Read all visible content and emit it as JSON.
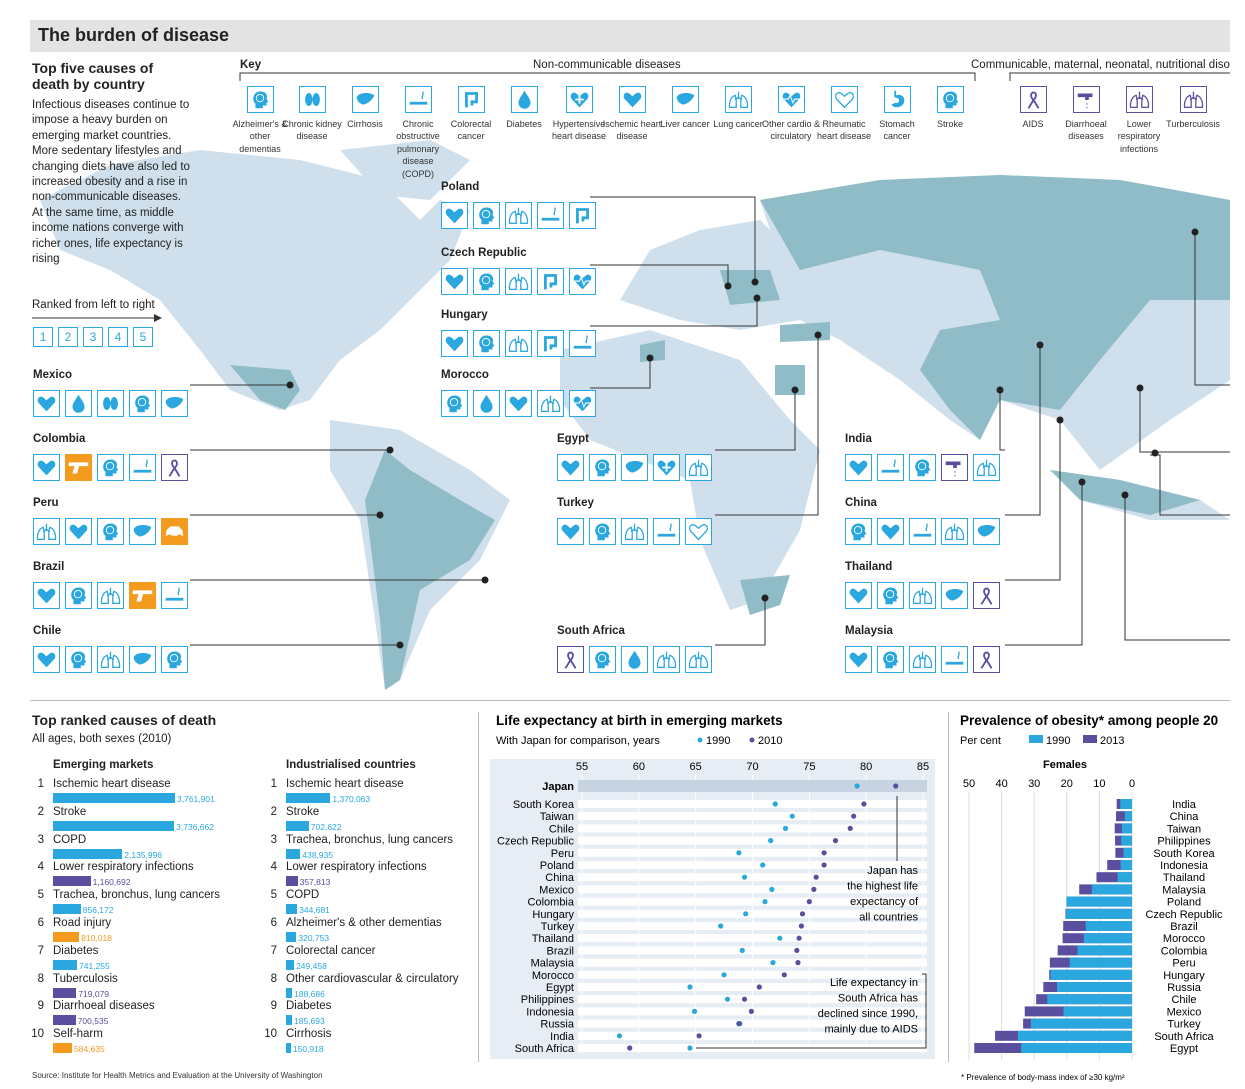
{
  "title": "The burden of disease",
  "map_section": {
    "heading": "Top five causes of death by country",
    "intro": "Infectious diseases continue to impose a heavy burden on emerging market countries. More sedentary lifestyles and changing diets have also led to increased obesity and a rise in non-communicable diseases. At the same time, as middle income nations converge with richer ones, life expectancy is rising",
    "ranked_label": "Ranked from left to right",
    "ranks": [
      "1",
      "2",
      "3",
      "4",
      "5"
    ],
    "key_label": "Key",
    "noncommunicable_label": "Non-communicable diseases",
    "communicable_label": "Communicable, maternal, neonatal, nutritional diso",
    "key_items": [
      {
        "icon": "head-icon",
        "label": "Alzheimer's & other dementias"
      },
      {
        "icon": "kidney-icon",
        "label": "Chronic kidney disease"
      },
      {
        "icon": "liver-icon",
        "label": "Cirrhosis"
      },
      {
        "icon": "cigarette-icon",
        "label": "Chronic obstructive pulmonary disease (COPD)"
      },
      {
        "icon": "colon-icon",
        "label": "Colorectal cancer"
      },
      {
        "icon": "drop-icon",
        "label": "Diabetes"
      },
      {
        "icon": "heart-plus-icon",
        "label": "Hypertensive heart disease"
      },
      {
        "icon": "heart-icon",
        "label": "Ischemic heart disease"
      },
      {
        "icon": "liver-icon",
        "label": "Liver cancer"
      },
      {
        "icon": "lungs-icon",
        "label": "Lung cancer"
      },
      {
        "icon": "heart-pulse-icon",
        "label": "Other cardio & circulatory"
      },
      {
        "icon": "heart-outline-icon",
        "label": "Rheumatic heart disease"
      },
      {
        "icon": "stomach-icon",
        "label": "Stomach cancer"
      },
      {
        "icon": "head-icon",
        "label": "Stroke"
      },
      {
        "icon": "ribbon-icon",
        "label": "AIDS"
      },
      {
        "icon": "tap-icon",
        "label": "Diarrhoeal diseases"
      },
      {
        "icon": "lungs-icon",
        "label": "Lower respiratory infections"
      },
      {
        "icon": "lungs-icon",
        "label": "Turberculosis"
      }
    ],
    "countries": [
      {
        "name": "Mexico",
        "icons": [
          "heart-icon",
          "drop-icon",
          "kidney-icon",
          "head-icon",
          "liver-icon"
        ]
      },
      {
        "name": "Colombia",
        "icons": [
          "heart-icon",
          "gun-icon",
          "head-icon",
          "cigarette-icon",
          "ribbon-icon"
        ]
      },
      {
        "name": "Peru",
        "icons": [
          "lungs-icon",
          "heart-icon",
          "head-icon",
          "liver-icon",
          "car-icon"
        ]
      },
      {
        "name": "Brazil",
        "icons": [
          "heart-icon",
          "head-icon",
          "lungs-icon",
          "gun-icon",
          "cigarette-icon"
        ]
      },
      {
        "name": "Chile",
        "icons": [
          "heart-icon",
          "head-icon",
          "lungs-icon",
          "liver-icon",
          "head-icon"
        ]
      },
      {
        "name": "Poland",
        "icons": [
          "heart-icon",
          "head-icon",
          "lungs-icon",
          "cigarette-icon",
          "colon-icon"
        ]
      },
      {
        "name": "Czech Republic",
        "icons": [
          "heart-icon",
          "head-icon",
          "lungs-icon",
          "colon-icon",
          "heart-pulse-icon"
        ]
      },
      {
        "name": "Hungary",
        "icons": [
          "heart-icon",
          "head-icon",
          "lungs-icon",
          "colon-icon",
          "cigarette-icon"
        ]
      },
      {
        "name": "Morocco",
        "icons": [
          "head-icon",
          "drop-icon",
          "heart-icon",
          "lungs-icon",
          "heart-pulse-icon"
        ]
      },
      {
        "name": "Egypt",
        "icons": [
          "heart-icon",
          "head-icon",
          "liver-icon",
          "heart-plus-icon",
          "lungs-icon"
        ]
      },
      {
        "name": "Turkey",
        "icons": [
          "heart-icon",
          "head-icon",
          "lungs-icon",
          "cigarette-icon",
          "heart-outline-icon"
        ]
      },
      {
        "name": "South Africa",
        "icons": [
          "ribbon-icon",
          "head-icon",
          "drop-icon",
          "lungs-icon",
          "lungs-icon"
        ]
      },
      {
        "name": "India",
        "icons": [
          "heart-icon",
          "cigarette-icon",
          "head-icon",
          "tap-icon",
          "lungs-icon"
        ]
      },
      {
        "name": "China",
        "icons": [
          "head-icon",
          "heart-icon",
          "cigarette-icon",
          "lungs-icon",
          "liver-icon"
        ]
      },
      {
        "name": "Thailand",
        "icons": [
          "heart-icon",
          "head-icon",
          "lungs-icon",
          "liver-icon",
          "ribbon-icon"
        ]
      },
      {
        "name": "Malaysia",
        "icons": [
          "heart-icon",
          "head-icon",
          "lungs-icon",
          "cigarette-icon",
          "ribbon-icon"
        ]
      }
    ]
  },
  "ranked_causes": {
    "title": "Top ranked causes of death",
    "subtitle": "All ages, both sexes (2010)",
    "emerging_label": "Emerging markets",
    "industrial_label": "Industrialised countries",
    "emerging": [
      {
        "rank": "1",
        "cause": "Ischemic heart disease",
        "value": 3761901,
        "label": "3,761,901",
        "color": "#2aa7de"
      },
      {
        "rank": "2",
        "cause": "Stroke",
        "value": 3736662,
        "label": "3,736,662",
        "color": "#2aa7de"
      },
      {
        "rank": "3",
        "cause": "COPD",
        "value": 2135996,
        "label": "2,135,996",
        "color": "#2aa7de"
      },
      {
        "rank": "4",
        "cause": "Lower respiratory infections",
        "value": 1160692,
        "label": "1,160,692",
        "color": "#5a4f9e"
      },
      {
        "rank": "5",
        "cause": "Trachea, bronchus, lung cancers",
        "value": 856172,
        "label": "856,172",
        "color": "#2aa7de"
      },
      {
        "rank": "6",
        "cause": "Road injury",
        "value": 810018,
        "label": "810,018",
        "color": "#f39a1f"
      },
      {
        "rank": "7",
        "cause": "Diabetes",
        "value": 741255,
        "label": "741,255",
        "color": "#2aa7de"
      },
      {
        "rank": "8",
        "cause": "Tuberculosis",
        "value": 719079,
        "label": "719,079",
        "color": "#5a4f9e"
      },
      {
        "rank": "9",
        "cause": "Diarrhoeal diseases",
        "value": 700535,
        "label": "700,535",
        "color": "#5a4f9e"
      },
      {
        "rank": "10",
        "cause": "Self-harm",
        "value": 584635,
        "label": "584,635",
        "color": "#f39a1f"
      }
    ],
    "industrialised": [
      {
        "rank": "1",
        "cause": "Ischemic heart disease",
        "value": 1370063,
        "label": "1,370,063",
        "color": "#2aa7de"
      },
      {
        "rank": "2",
        "cause": "Stroke",
        "value": 702622,
        "label": "702,622",
        "color": "#2aa7de"
      },
      {
        "rank": "3",
        "cause": "Trachea, bronchus, lung cancers",
        "value": 438935,
        "label": "438,935",
        "color": "#2aa7de"
      },
      {
        "rank": "4",
        "cause": "Lower respiratory infections",
        "value": 357813,
        "label": "357,813",
        "color": "#5a4f9e"
      },
      {
        "rank": "5",
        "cause": "COPD",
        "value": 344681,
        "label": "344,681",
        "color": "#2aa7de"
      },
      {
        "rank": "6",
        "cause": "Alzheimer's & other dementias",
        "value": 320753,
        "label": "320,753",
        "color": "#2aa7de"
      },
      {
        "rank": "7",
        "cause": "Colorectal cancer",
        "value": 249458,
        "label": "249,458",
        "color": "#2aa7de"
      },
      {
        "rank": "8",
        "cause": "Other cardiovascular & circulatory",
        "value": 188686,
        "label": "188,686",
        "color": "#2aa7de"
      },
      {
        "rank": "9",
        "cause": "Diabetes",
        "value": 185693,
        "label": "185,693",
        "color": "#2aa7de"
      },
      {
        "rank": "10",
        "cause": "Cirrhosis",
        "value": 150918,
        "label": "150,918",
        "color": "#2aa7de"
      }
    ]
  },
  "chart_data": [
    {
      "type": "scatter",
      "title": "Life expectancy at birth in emerging markets",
      "subtitle": "With Japan for comparison, years",
      "xlim": [
        55,
        85
      ],
      "xticks": [
        55,
        60,
        65,
        70,
        75,
        80,
        85
      ],
      "legend": [
        "1990",
        "2010"
      ],
      "colors": {
        "1990": "#2aa7de",
        "2010": "#5a4f9e"
      },
      "categories": [
        "Japan",
        "South Korea",
        "Taiwan",
        "Chile",
        "Czech Republic",
        "Peru",
        "Poland",
        "China",
        "Mexico",
        "Colombia",
        "Hungary",
        "Turkey",
        "Thailand",
        "Brazil",
        "Malaysia",
        "Morocco",
        "Egypt",
        "Philippines",
        "Indonesia",
        "Russia",
        "India",
        "South Africa"
      ],
      "series": [
        {
          "name": "1990",
          "values": [
            79.2,
            72.0,
            73.5,
            72.9,
            71.6,
            68.8,
            70.9,
            69.3,
            71.7,
            71.1,
            69.4,
            67.2,
            72.4,
            69.1,
            71.8,
            67.5,
            64.5,
            67.8,
            64.9,
            68.9,
            58.3,
            64.5
          ]
        },
        {
          "name": "2010",
          "values": [
            82.6,
            79.8,
            78.9,
            78.6,
            77.3,
            76.3,
            76.3,
            75.6,
            75.4,
            75.0,
            74.4,
            74.3,
            74.1,
            73.9,
            74.0,
            72.8,
            70.6,
            69.3,
            69.9,
            68.8,
            65.3,
            59.2
          ]
        }
      ],
      "annotations": [
        "Japan has the highest life expectancy of all countries",
        "Life expectancy in South Africa has declined since 1990, mainly due to AIDS"
      ]
    },
    {
      "type": "bar",
      "title": "Prevalence of obesity* among people 20",
      "subtitle": "Per cent",
      "panel": "Females",
      "xlim": [
        50,
        0
      ],
      "xticks": [
        50,
        40,
        30,
        20,
        10,
        0
      ],
      "legend": [
        "1990",
        "2013"
      ],
      "colors": {
        "1990": "#2aa7de",
        "2013": "#5a4f9e"
      },
      "categories": [
        "India",
        "China",
        "Taiwan",
        "Philippines",
        "South Korea",
        "Indonesia",
        "Thailand",
        "Malaysia",
        "Poland",
        "Czech Republic",
        "Brazil",
        "Morocco",
        "Colombia",
        "Peru",
        "Hungary",
        "Russia",
        "Chile",
        "Mexico",
        "Turkey",
        "South Africa",
        "Egypt"
      ],
      "series": [
        {
          "name": "1990",
          "values": [
            3.6,
            2.2,
            3.1,
            3.3,
            2.6,
            3.5,
            4.4,
            12.3,
            20.1,
            20.2,
            14.2,
            14.8,
            16.7,
            19.1,
            25.0,
            23.0,
            26.0,
            21.0,
            31.0,
            35.0,
            34.0
          ]
        },
        {
          "name": "2013",
          "values": [
            4.7,
            4.9,
            5.3,
            5.2,
            5.1,
            7.6,
            10.9,
            16.2,
            20.1,
            20.4,
            21.1,
            21.3,
            22.8,
            25.2,
            25.4,
            27.2,
            29.4,
            32.9,
            33.4,
            42.0,
            48.4
          ]
        }
      ],
      "footnote": "* Prevalence of body-mass index of ≥30 kg/m²"
    }
  ],
  "source": "Source: Institute for Health Metrics and Evaluation at the University of Washington"
}
